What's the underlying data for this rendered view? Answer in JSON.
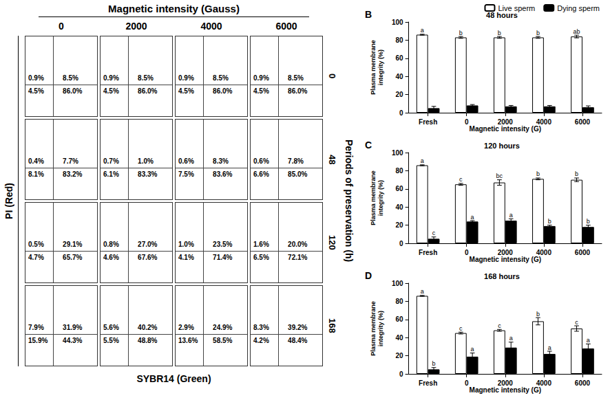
{
  "flow_cytometry": {
    "title": "Magnetic intensity (Gauss)",
    "columns": [
      "0",
      "2000",
      "4000",
      "6000"
    ],
    "row_title": "Periods of preservation (h)",
    "rows": [
      "0",
      "48",
      "120",
      "168"
    ],
    "y_label": "PI (Red)",
    "x_label": "SYBR14 (Green)",
    "cells": [
      [
        {
          "ul": "0.9%",
          "ur": "8.5%",
          "ll": "4.5%",
          "lr": "86.0%"
        },
        {
          "ul": "0.9%",
          "ur": "8.5%",
          "ll": "4.5%",
          "lr": "86.0%"
        },
        {
          "ul": "0.9%",
          "ur": "8.5%",
          "ll": "4.5%",
          "lr": "86.0%"
        },
        {
          "ul": "0.9%",
          "ur": "8.5%",
          "ll": "4.5%",
          "lr": "86.0%"
        }
      ],
      [
        {
          "ul": "0.4%",
          "ur": "7.7%",
          "ll": "8.1%",
          "lr": "83.2%"
        },
        {
          "ul": "0.7%",
          "ur": "1.0%",
          "ll": "6.1%",
          "lr": "83.3%"
        },
        {
          "ul": "0.6%",
          "ur": "8.3%",
          "ll": "7.5%",
          "lr": "83.6%"
        },
        {
          "ul": "0.6%",
          "ur": "7.8%",
          "ll": "6.6%",
          "lr": "85.0%"
        }
      ],
      [
        {
          "ul": "0.5%",
          "ur": "29.1%",
          "ll": "4.7%",
          "lr": "65.7%"
        },
        {
          "ul": "0.8%",
          "ur": "27.0%",
          "ll": "4.6%",
          "lr": "67.6%"
        },
        {
          "ul": "1.0%",
          "ur": "23.5%",
          "ll": "4.1%",
          "lr": "71.4%"
        },
        {
          "ul": "1.6%",
          "ur": "20.0%",
          "ll": "6.5%",
          "lr": "72.1%"
        }
      ],
      [
        {
          "ul": "7.9%",
          "ur": "31.9%",
          "ll": "15.9%",
          "lr": "44.3%"
        },
        {
          "ul": "5.6%",
          "ur": "40.2%",
          "ll": "5.5%",
          "lr": "48.8%"
        },
        {
          "ul": "2.9%",
          "ur": "24.9%",
          "ll": "13.6%",
          "lr": "58.5%"
        },
        {
          "ul": "8.3%",
          "ur": "39.2%",
          "ll": "4.2%",
          "lr": "48.4%"
        }
      ]
    ]
  },
  "chart_data": [
    {
      "type": "bar",
      "panel": "B",
      "title": "48 hours",
      "categories": [
        "Fresh",
        "0",
        "2000",
        "4000",
        "6000"
      ],
      "series": [
        {
          "name": "Live sperm",
          "color": "#ffffff",
          "values": [
            86,
            83,
            83,
            83,
            84
          ],
          "errors": [
            0.5,
            1,
            1,
            1,
            1.5
          ],
          "letters": [
            "a",
            "b",
            "b",
            "b",
            "ab"
          ]
        },
        {
          "name": "Dying sperm",
          "color": "#000000",
          "values": [
            5,
            8,
            7,
            7,
            6
          ],
          "errors": [
            2,
            1,
            1,
            1,
            1.5
          ],
          "letters": [
            null,
            null,
            null,
            null,
            null
          ]
        }
      ],
      "ylim": [
        0,
        100
      ],
      "yticks": [
        0,
        20,
        40,
        60,
        80,
        100
      ],
      "y_label": "Plasma membrane integrity (%)",
      "x_label": "Magnetic intensity (G)",
      "legend": "top-right",
      "grid": false
    },
    {
      "type": "bar",
      "panel": "C",
      "title": "120 hours",
      "categories": [
        "Fresh",
        "0",
        "2000",
        "4000",
        "6000"
      ],
      "series": [
        {
          "name": "Live sperm",
          "color": "#ffffff",
          "values": [
            86,
            65,
            67,
            71,
            70
          ],
          "errors": [
            0.5,
            1,
            3,
            1,
            2
          ],
          "letters": [
            "a",
            "c",
            "bc",
            "b",
            "b"
          ]
        },
        {
          "name": "Dying sperm",
          "color": "#000000",
          "values": [
            5,
            24,
            25,
            19,
            18
          ],
          "errors": [
            2,
            1,
            2,
            1,
            2
          ],
          "letters": [
            "c",
            "a",
            "a",
            "b",
            "b"
          ]
        }
      ],
      "ylim": [
        0,
        100
      ],
      "yticks": [
        0,
        20,
        40,
        60,
        80,
        100
      ],
      "y_label": "Plasma membrane integrity (%)",
      "x_label": "Magnetic intensity (G)",
      "grid": false
    },
    {
      "type": "bar",
      "panel": "D",
      "title": "168 hours",
      "categories": [
        "Fresh",
        "0",
        "2000",
        "4000",
        "6000"
      ],
      "series": [
        {
          "name": "Live sperm",
          "color": "#ffffff",
          "values": [
            86,
            45,
            48,
            58,
            50
          ],
          "errors": [
            0.5,
            1,
            1,
            4,
            3
          ],
          "letters": [
            "a",
            "c",
            "c",
            "b",
            "c"
          ]
        },
        {
          "name": "Dying sperm",
          "color": "#000000",
          "values": [
            5,
            19,
            29,
            22,
            28
          ],
          "errors": [
            2,
            4,
            6,
            3,
            5
          ],
          "letters": [
            "b",
            "a",
            "a",
            "a",
            "a"
          ]
        }
      ],
      "ylim": [
        0,
        100
      ],
      "yticks": [
        0,
        20,
        40,
        60,
        80,
        100
      ],
      "y_label": "Plasma membrane integrity (%)",
      "x_label": "Magnetic intensity (G)",
      "grid": false
    }
  ]
}
